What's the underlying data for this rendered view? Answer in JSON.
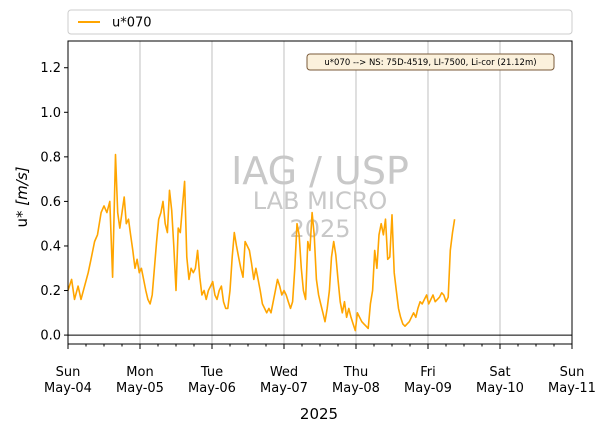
{
  "chart_data": {
    "type": "line",
    "xlabel": "2025",
    "ylabel_prefix": "u* ",
    "ylabel_unit": "[m/s]",
    "ylim": [
      -0.04,
      1.32
    ],
    "xlim_days": [
      "2025-05-04",
      "2025-05-11"
    ],
    "yticks": [
      0.0,
      0.2,
      0.4,
      0.6,
      0.8,
      1.0,
      1.2
    ],
    "ytick_labels": [
      "0.0",
      "0.2",
      "0.4",
      "0.6",
      "0.8",
      "1.0",
      "1.2"
    ],
    "xticks": [
      {
        "day": "Sun",
        "date": "May-04"
      },
      {
        "day": "Mon",
        "date": "May-05"
      },
      {
        "day": "Tue",
        "date": "May-06"
      },
      {
        "day": "Wed",
        "date": "May-07"
      },
      {
        "day": "Thu",
        "date": "May-08"
      },
      {
        "day": "Fri",
        "date": "May-09"
      },
      {
        "day": "Sat",
        "date": "May-10"
      },
      {
        "day": "Sun",
        "date": "May-11"
      }
    ],
    "grid": "vertical",
    "legend_placement": "top, above plot",
    "annotation": "u*070 --> NS: 75D-4519, LI-7500, Li-cor (21.12m)",
    "watermark": [
      "IAG / USP",
      "LAB MICRO",
      "2025"
    ],
    "series": [
      {
        "name": "u*070",
        "color": "#ffa500",
        "x": [
          0.0,
          0.05,
          0.09,
          0.14,
          0.18,
          0.23,
          0.28,
          0.32,
          0.37,
          0.41,
          0.46,
          0.5,
          0.54,
          0.58,
          0.62,
          0.66,
          0.69,
          0.72,
          0.75,
          0.78,
          0.81,
          0.84,
          0.87,
          0.9,
          0.93,
          0.96,
          0.99,
          1.02,
          1.05,
          1.08,
          1.11,
          1.14,
          1.17,
          1.2,
          1.23,
          1.26,
          1.29,
          1.32,
          1.35,
          1.38,
          1.41,
          1.44,
          1.47,
          1.5,
          1.53,
          1.56,
          1.59,
          1.62,
          1.65,
          1.68,
          1.71,
          1.74,
          1.77,
          1.8,
          1.83,
          1.86,
          1.89,
          1.92,
          1.95,
          1.98,
          2.01,
          2.04,
          2.07,
          2.1,
          2.13,
          2.16,
          2.19,
          2.22,
          2.25,
          2.28,
          2.31,
          2.34,
          2.37,
          2.4,
          2.43,
          2.46,
          2.49,
          2.52,
          2.55,
          2.58,
          2.61,
          2.64,
          2.67,
          2.7,
          2.73,
          2.76,
          2.79,
          2.82,
          2.85,
          2.88,
          2.91,
          2.94,
          2.97,
          3.0,
          3.03,
          3.06,
          3.09,
          3.12,
          3.15,
          3.18,
          3.21,
          3.24,
          3.27,
          3.3,
          3.33,
          3.36,
          3.39,
          3.42,
          3.45,
          3.48,
          3.51,
          3.54,
          3.57,
          3.6,
          3.63,
          3.66,
          3.69,
          3.72,
          3.75,
          3.78,
          3.81,
          3.84,
          3.87,
          3.9,
          3.93,
          3.96,
          3.99,
          4.02,
          4.05,
          4.08,
          4.11,
          4.14,
          4.17,
          4.2,
          4.23,
          4.26,
          4.29,
          4.32,
          4.35,
          4.38,
          4.41,
          4.44,
          4.47,
          4.5,
          4.53,
          4.56,
          4.59,
          4.62,
          4.65,
          4.68,
          4.71,
          4.74,
          4.77,
          4.8,
          4.83,
          4.86,
          4.89,
          4.92,
          4.95,
          4.98,
          5.01,
          5.04,
          5.07,
          5.1,
          5.13,
          5.16,
          5.19,
          5.22,
          5.25,
          5.28,
          5.31,
          5.34,
          5.37
        ],
        "y": [
          0.2,
          0.25,
          0.16,
          0.22,
          0.16,
          0.22,
          0.28,
          0.34,
          0.42,
          0.45,
          0.55,
          0.58,
          0.55,
          0.6,
          0.26,
          0.81,
          0.55,
          0.48,
          0.55,
          0.62,
          0.5,
          0.52,
          0.45,
          0.38,
          0.3,
          0.34,
          0.28,
          0.3,
          0.25,
          0.2,
          0.16,
          0.14,
          0.18,
          0.3,
          0.42,
          0.52,
          0.55,
          0.6,
          0.5,
          0.46,
          0.65,
          0.56,
          0.4,
          0.2,
          0.48,
          0.46,
          0.58,
          0.69,
          0.35,
          0.25,
          0.3,
          0.28,
          0.3,
          0.38,
          0.26,
          0.18,
          0.2,
          0.16,
          0.2,
          0.22,
          0.24,
          0.18,
          0.16,
          0.2,
          0.22,
          0.15,
          0.12,
          0.12,
          0.2,
          0.35,
          0.46,
          0.4,
          0.35,
          0.3,
          0.26,
          0.42,
          0.4,
          0.38,
          0.32,
          0.25,
          0.3,
          0.25,
          0.2,
          0.14,
          0.12,
          0.1,
          0.12,
          0.1,
          0.15,
          0.2,
          0.25,
          0.22,
          0.18,
          0.2,
          0.18,
          0.15,
          0.12,
          0.15,
          0.3,
          0.5,
          0.45,
          0.3,
          0.2,
          0.16,
          0.42,
          0.38,
          0.55,
          0.45,
          0.25,
          0.18,
          0.14,
          0.1,
          0.06,
          0.12,
          0.2,
          0.35,
          0.42,
          0.36,
          0.25,
          0.15,
          0.1,
          0.15,
          0.08,
          0.12,
          0.08,
          0.05,
          0.02,
          0.1,
          0.08,
          0.06,
          0.05,
          0.04,
          0.03,
          0.14,
          0.2,
          0.38,
          0.3,
          0.45,
          0.5,
          0.45,
          0.52,
          0.34,
          0.35,
          0.54,
          0.28,
          0.2,
          0.12,
          0.08,
          0.05,
          0.04,
          0.05,
          0.06,
          0.08,
          0.1,
          0.08,
          0.12,
          0.15,
          0.14,
          0.16,
          0.18,
          0.14,
          0.16,
          0.18,
          0.15,
          0.16,
          0.17,
          0.19,
          0.18,
          0.15,
          0.17,
          0.38,
          0.46,
          0.52
        ]
      }
    ]
  }
}
